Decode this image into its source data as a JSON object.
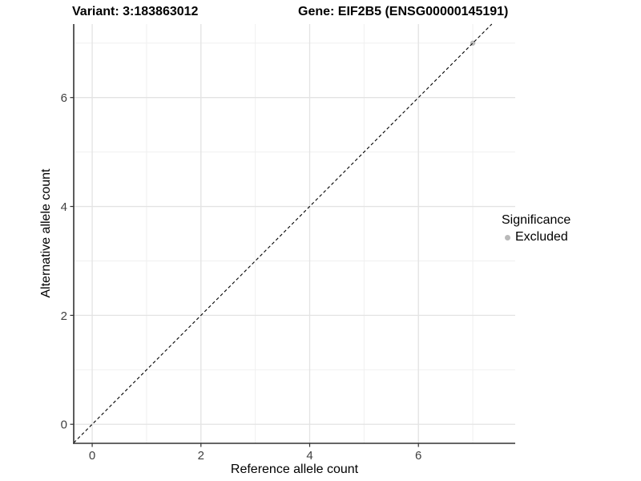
{
  "titles": {
    "variant": "Variant: 3:183863012",
    "gene": "Gene: EIF2B5 (ENSG00000145191)"
  },
  "chart_data": {
    "type": "scatter",
    "xlabel": "Reference allele count",
    "ylabel": "Alternative allele count",
    "xlim": [
      -0.34,
      7.78
    ],
    "ylim": [
      -0.35,
      7.35
    ],
    "x_major_ticks": [
      0,
      2,
      4,
      6
    ],
    "y_major_ticks": [
      0,
      2,
      4,
      6
    ],
    "x_minor_ticks": [
      1,
      3,
      5,
      7
    ],
    "y_minor_ticks": [
      1,
      3,
      5,
      7
    ],
    "grid": "major+minor",
    "reference_line": {
      "type": "abline",
      "slope": 1,
      "intercept": 0,
      "linetype": "dashed",
      "color": "#000000"
    },
    "series": [
      {
        "name": "Excluded",
        "color": "#b9b9b9",
        "point_radius": 3.2,
        "points": [
          [
            7,
            7
          ]
        ]
      }
    ],
    "legend": {
      "title": "Significance",
      "position": "right",
      "items": [
        {
          "label": "Excluded",
          "color": "#b9b9b9"
        }
      ]
    }
  },
  "colors": {
    "background": "#ffffff",
    "grid_major": "#e3e3e3",
    "grid_minor": "#f0f0f0",
    "axis_line": "#333333",
    "tick_mark": "#333333",
    "tick_label": "#404040",
    "text": "#000000"
  }
}
